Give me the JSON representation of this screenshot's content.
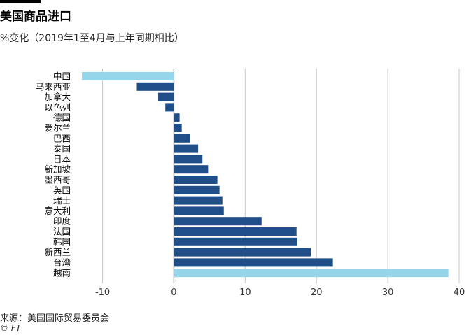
{
  "title": "美国商品进口",
  "subtitle": "%变化（2019年1至4月与上年同期相比）",
  "source": "来源：美国国际贸易委员会",
  "copyright": "© FT",
  "colors": {
    "bar": "#1f4e89",
    "highlight": "#96d6ea",
    "grid": "#c8c8c8",
    "axis": "#333333",
    "text": "#000000"
  },
  "chart_data": {
    "type": "bar",
    "orientation": "horizontal",
    "categories": [
      "中国",
      "马来西亚",
      "加拿大",
      "以色列",
      "德国",
      "爱尔兰",
      "巴西",
      "泰国",
      "日本",
      "新加坡",
      "墨西哥",
      "英国",
      "瑞士",
      "意大利",
      "印度",
      "法国",
      "韩国",
      "新西兰",
      "台湾",
      "越南"
    ],
    "values": [
      -12.9,
      -5.2,
      -2.2,
      -1.2,
      0.8,
      1.1,
      2.3,
      3.4,
      4.0,
      4.8,
      6.1,
      6.4,
      6.8,
      7.0,
      12.3,
      17.2,
      17.3,
      19.2,
      22.3,
      38.5
    ],
    "highlighted": [
      "中国",
      "越南"
    ],
    "xlim": [
      -13,
      40
    ],
    "xticks": [
      -10,
      0,
      10,
      20,
      30,
      40
    ],
    "xlabel": "",
    "ylabel": "",
    "grid": true
  }
}
